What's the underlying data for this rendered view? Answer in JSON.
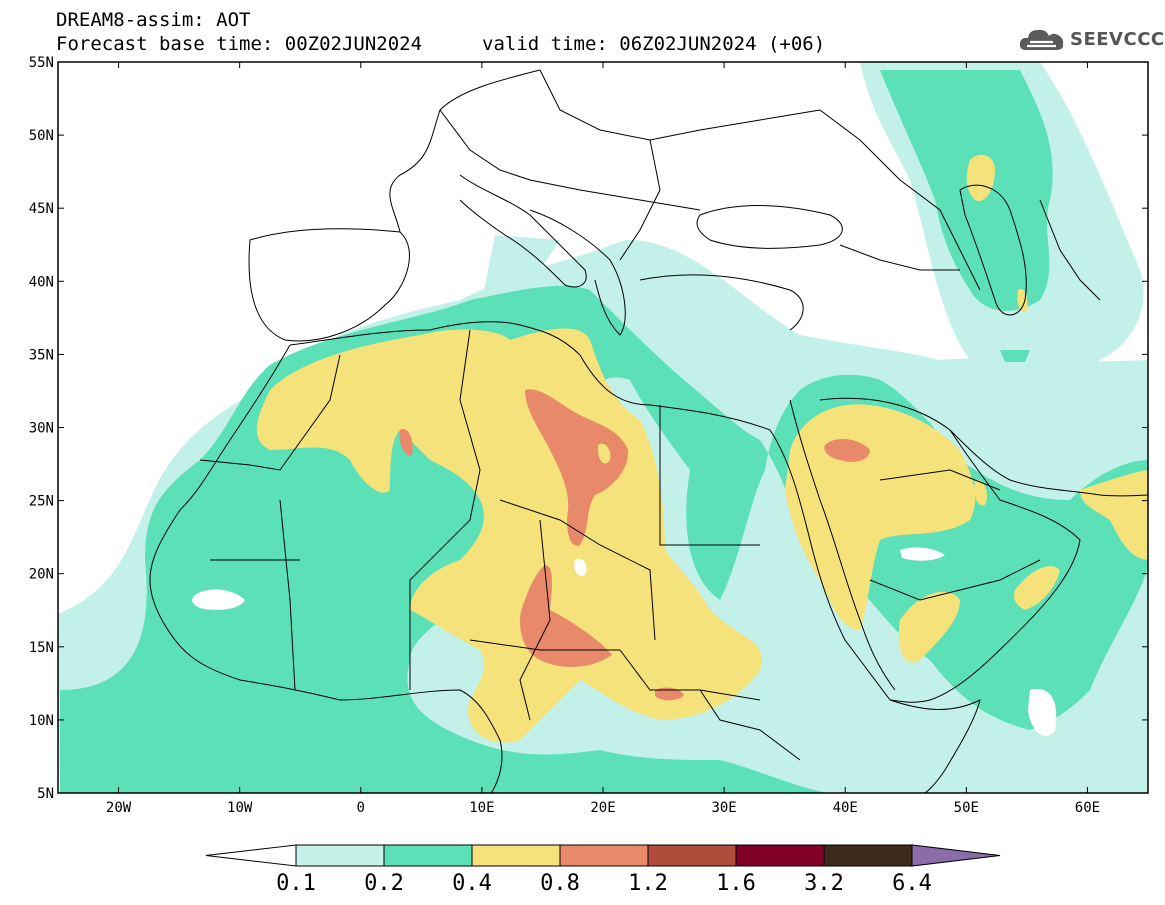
{
  "header": {
    "title_line1": "DREAM8-assim: AOT",
    "base_time": "Forecast base time: 00Z02JUN2024",
    "valid_time": "valid time: 06Z02JUN2024 (+06)",
    "logo_text": "SEEVCCC",
    "logo_icon": "cloud-icon"
  },
  "map": {
    "projection": "lat-lon",
    "lon_range": [
      -25,
      65
    ],
    "lat_range": [
      5,
      55
    ],
    "lon_ticks": [
      {
        "value": -20,
        "label": "20W"
      },
      {
        "value": -10,
        "label": "10W"
      },
      {
        "value": 0,
        "label": "0"
      },
      {
        "value": 10,
        "label": "10E"
      },
      {
        "value": 20,
        "label": "20E"
      },
      {
        "value": 30,
        "label": "30E"
      },
      {
        "value": 40,
        "label": "40E"
      },
      {
        "value": 50,
        "label": "50E"
      },
      {
        "value": 60,
        "label": "60E"
      }
    ],
    "lat_ticks": [
      {
        "value": 55,
        "label": "55N"
      },
      {
        "value": 50,
        "label": "50N"
      },
      {
        "value": 45,
        "label": "45N"
      },
      {
        "value": 40,
        "label": "40N"
      },
      {
        "value": 35,
        "label": "35N"
      },
      {
        "value": 30,
        "label": "30N"
      },
      {
        "value": 25,
        "label": "25N"
      },
      {
        "value": 20,
        "label": "20N"
      },
      {
        "value": 15,
        "label": "15N"
      },
      {
        "value": 10,
        "label": "10N"
      },
      {
        "value": 5,
        "label": "5N"
      }
    ]
  },
  "colorbar": {
    "levels": [
      "0.1",
      "0.2",
      "0.4",
      "0.8",
      "1.2",
      "1.6",
      "3.2",
      "6.4"
    ],
    "colors": [
      "#ffffff",
      "#c4f0ea",
      "#5ce0b8",
      "#f5e27a",
      "#e8896a",
      "#b04c3c",
      "#820026",
      "#3d2a1a",
      "#8c6ca8"
    ]
  }
}
